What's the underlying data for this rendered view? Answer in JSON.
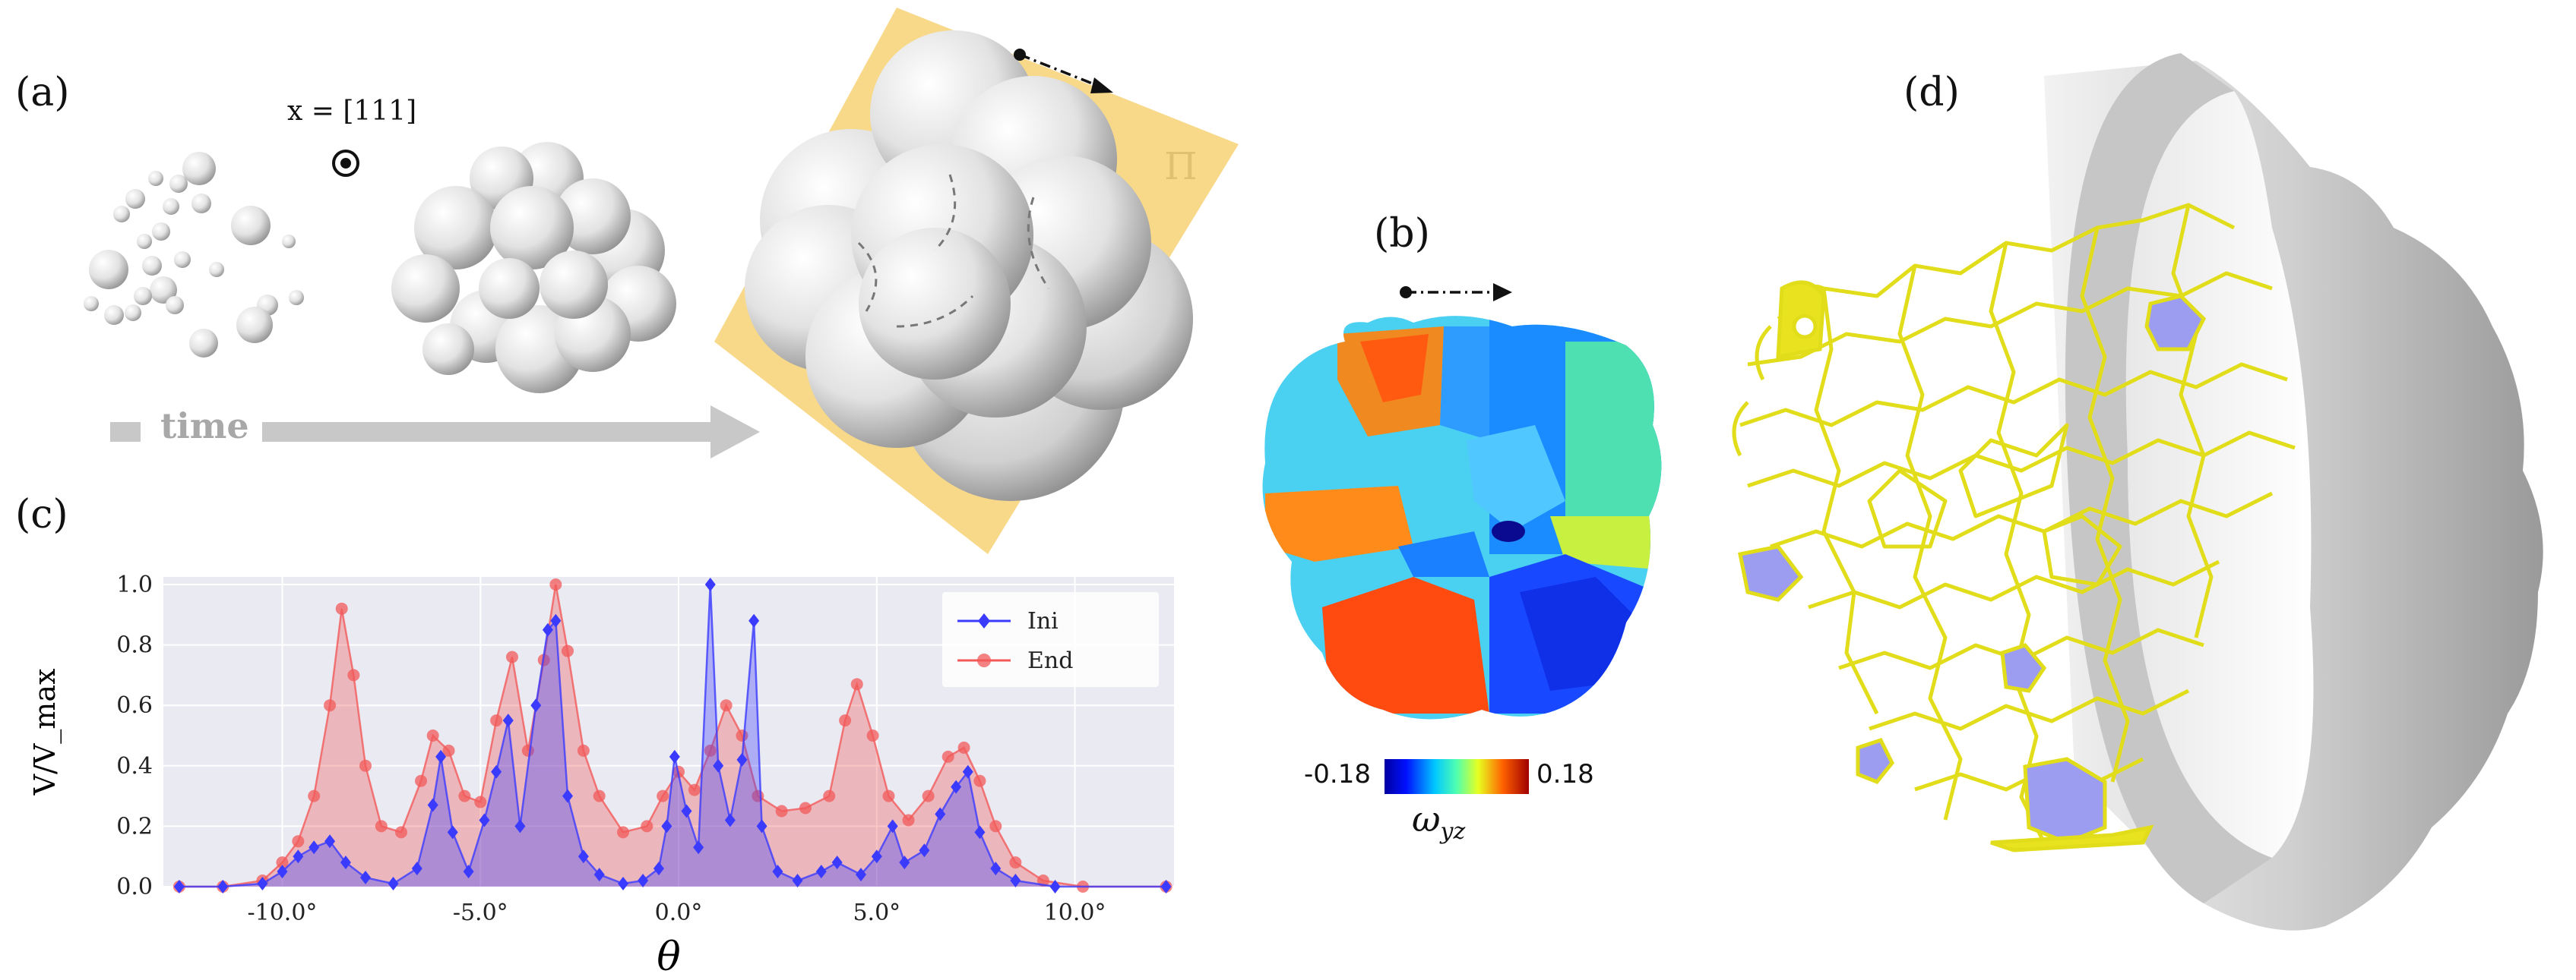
{
  "panels": {
    "a": {
      "label": "(a)",
      "direction_label": "x = [111]",
      "time_label": "time",
      "plane_label": "Π"
    },
    "b": {
      "label": "(b)",
      "colorbar_min": "-0.18",
      "colorbar_max": "0.18",
      "colorbar_var": "ω",
      "colorbar_sub": "yz"
    },
    "c": {
      "label": "(c)"
    },
    "d": {
      "label": "(d)"
    }
  },
  "colors": {
    "ini": "#3b3bff",
    "end": "#f25a5a",
    "plot_bg": "#eaeaf2",
    "plane": "#f6d47a",
    "network": "#e6e224",
    "arrow": "#c8c8c8"
  },
  "chart_data": {
    "type": "line",
    "title": "",
    "xlabel": "θ",
    "ylabel": "V/V_max",
    "xlim": [
      -13,
      12.5
    ],
    "ylim": [
      0,
      1.0
    ],
    "xticks": [
      -10,
      -5,
      0,
      5,
      10
    ],
    "xtick_labels": [
      "-10.0°",
      "-5.0°",
      "0.0°",
      "5.0°",
      "10.0°"
    ],
    "yticks": [
      0,
      0.2,
      0.4,
      0.6,
      0.8,
      1.0
    ],
    "ytick_labels": [
      "0.0",
      "0.2",
      "0.4",
      "0.6",
      "0.8",
      "1.0"
    ],
    "legend_position": "upper-right",
    "series": [
      {
        "name": "Ini",
        "color": "#3b3bff",
        "marker": "diamond",
        "points": [
          [
            -12.6,
            0
          ],
          [
            -11.5,
            0
          ],
          [
            -10.5,
            0.01
          ],
          [
            -10,
            0.05
          ],
          [
            -9.6,
            0.1
          ],
          [
            -9.2,
            0.13
          ],
          [
            -8.8,
            0.15
          ],
          [
            -8.4,
            0.08
          ],
          [
            -7.9,
            0.03
          ],
          [
            -7.2,
            0.01
          ],
          [
            -6.6,
            0.06
          ],
          [
            -6.2,
            0.27
          ],
          [
            -6.0,
            0.43
          ],
          [
            -5.7,
            0.18
          ],
          [
            -5.3,
            0.05
          ],
          [
            -4.9,
            0.22
          ],
          [
            -4.6,
            0.38
          ],
          [
            -4.3,
            0.55
          ],
          [
            -4.0,
            0.2
          ],
          [
            -3.6,
            0.6
          ],
          [
            -3.3,
            0.85
          ],
          [
            -3.1,
            0.88
          ],
          [
            -2.8,
            0.3
          ],
          [
            -2.4,
            0.1
          ],
          [
            -2.0,
            0.04
          ],
          [
            -1.4,
            0.01
          ],
          [
            -0.9,
            0.02
          ],
          [
            -0.5,
            0.06
          ],
          [
            -0.3,
            0.2
          ],
          [
            -0.1,
            0.43
          ],
          [
            0.2,
            0.25
          ],
          [
            0.5,
            0.13
          ],
          [
            0.8,
            1.0
          ],
          [
            1.0,
            0.4
          ],
          [
            1.3,
            0.22
          ],
          [
            1.6,
            0.42
          ],
          [
            1.9,
            0.88
          ],
          [
            2.1,
            0.2
          ],
          [
            2.5,
            0.05
          ],
          [
            3.0,
            0.02
          ],
          [
            3.6,
            0.05
          ],
          [
            4.0,
            0.08
          ],
          [
            4.6,
            0.04
          ],
          [
            5.0,
            0.1
          ],
          [
            5.4,
            0.2
          ],
          [
            5.7,
            0.08
          ],
          [
            6.2,
            0.12
          ],
          [
            6.6,
            0.24
          ],
          [
            7.0,
            0.33
          ],
          [
            7.3,
            0.38
          ],
          [
            7.6,
            0.18
          ],
          [
            8.0,
            0.06
          ],
          [
            8.5,
            0.02
          ],
          [
            9.5,
            0
          ],
          [
            12.3,
            0
          ]
        ]
      },
      {
        "name": "End",
        "color": "#f25a5a",
        "marker": "circle",
        "points": [
          [
            -12.6,
            0
          ],
          [
            -11.5,
            0
          ],
          [
            -10.5,
            0.02
          ],
          [
            -10,
            0.08
          ],
          [
            -9.6,
            0.15
          ],
          [
            -9.2,
            0.3
          ],
          [
            -8.8,
            0.6
          ],
          [
            -8.5,
            0.92
          ],
          [
            -8.2,
            0.7
          ],
          [
            -7.9,
            0.4
          ],
          [
            -7.5,
            0.2
          ],
          [
            -7.0,
            0.18
          ],
          [
            -6.5,
            0.35
          ],
          [
            -6.2,
            0.5
          ],
          [
            -5.8,
            0.45
          ],
          [
            -5.4,
            0.3
          ],
          [
            -5.0,
            0.28
          ],
          [
            -4.6,
            0.55
          ],
          [
            -4.2,
            0.76
          ],
          [
            -3.8,
            0.45
          ],
          [
            -3.4,
            0.75
          ],
          [
            -3.1,
            1.0
          ],
          [
            -2.8,
            0.78
          ],
          [
            -2.4,
            0.45
          ],
          [
            -2.0,
            0.3
          ],
          [
            -1.4,
            0.18
          ],
          [
            -0.8,
            0.2
          ],
          [
            -0.4,
            0.3
          ],
          [
            0.0,
            0.38
          ],
          [
            0.4,
            0.32
          ],
          [
            0.8,
            0.45
          ],
          [
            1.2,
            0.6
          ],
          [
            1.6,
            0.5
          ],
          [
            2.0,
            0.3
          ],
          [
            2.6,
            0.25
          ],
          [
            3.2,
            0.26
          ],
          [
            3.8,
            0.3
          ],
          [
            4.2,
            0.55
          ],
          [
            4.5,
            0.67
          ],
          [
            4.9,
            0.5
          ],
          [
            5.3,
            0.3
          ],
          [
            5.8,
            0.22
          ],
          [
            6.3,
            0.3
          ],
          [
            6.8,
            0.43
          ],
          [
            7.2,
            0.46
          ],
          [
            7.6,
            0.35
          ],
          [
            8.0,
            0.2
          ],
          [
            8.5,
            0.08
          ],
          [
            9.2,
            0.02
          ],
          [
            10.2,
            0
          ],
          [
            12.3,
            0
          ]
        ]
      }
    ]
  }
}
